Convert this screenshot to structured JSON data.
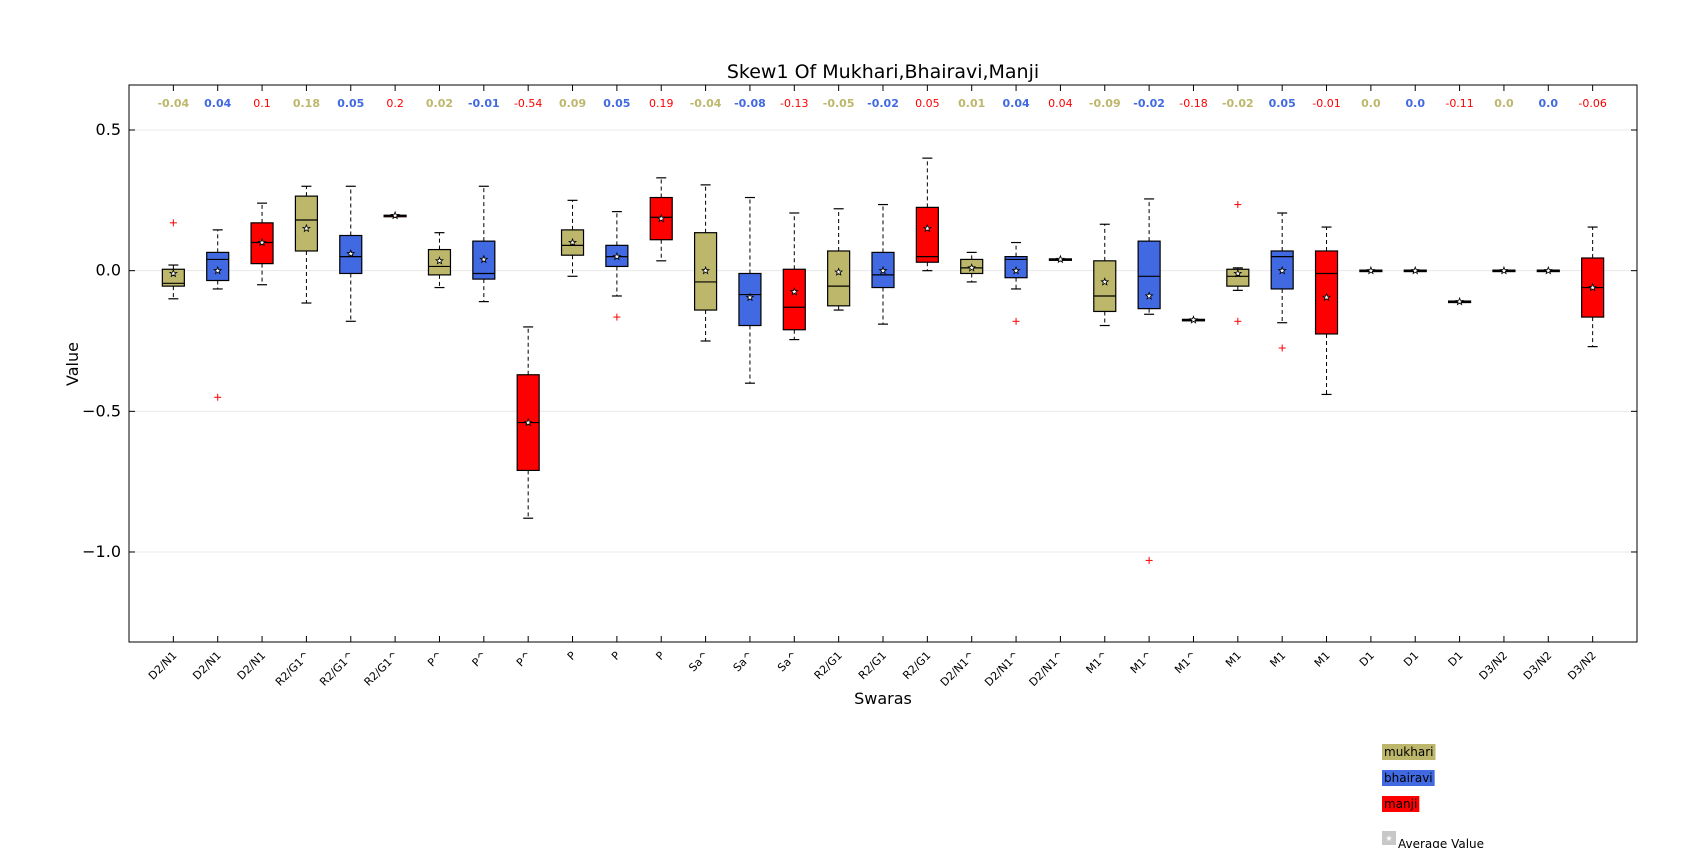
{
  "chart_data": {
    "type": "boxplot",
    "title": "Skew1 Of Mukhari,Bhairavi,Manji",
    "xlabel": "Swaras",
    "ylabel": "Value",
    "ylim": [
      -1.32,
      0.66
    ],
    "yticks": [
      0.5,
      0.0,
      -0.5,
      -1.0
    ],
    "ytick_labels": [
      "0.5",
      "0.0",
      "−0.5",
      "−1.0"
    ],
    "grid": "horizontal",
    "legend_position": "bottom-right",
    "average_value_label": "Average Value",
    "series_colors": {
      "mukhari": "#bdb76b",
      "bhairavi": "#4169e1",
      "manji": "#ff0000"
    },
    "avg_label_colors": {
      "mukhari": "#bdb76b",
      "bhairavi": "#4169e1",
      "manji": "#ff0000"
    },
    "legend": [
      {
        "name": "mukhari",
        "color": "#bdb76b"
      },
      {
        "name": "bhairavi",
        "color": "#4169e1"
      },
      {
        "name": "manji",
        "color": "#ff0000"
      }
    ],
    "boxes": [
      {
        "label": "D2/N1",
        "series": "mukhari",
        "avg_label": "-0.04",
        "whislo": -0.1,
        "q1": -0.055,
        "med": -0.045,
        "q3": 0.005,
        "whishi": 0.02,
        "mean": -0.01,
        "fliers": [
          0.17
        ]
      },
      {
        "label": "D2/N1",
        "series": "bhairavi",
        "avg_label": "0.04",
        "whislo": -0.065,
        "q1": -0.035,
        "med": 0.04,
        "q3": 0.065,
        "whishi": 0.145,
        "mean": 0.0,
        "fliers": [
          -0.45
        ]
      },
      {
        "label": "D2/N1",
        "series": "manji",
        "avg_label": "0.1",
        "whislo": -0.05,
        "q1": 0.025,
        "med": 0.1,
        "q3": 0.17,
        "whishi": 0.24,
        "mean": 0.1,
        "fliers": []
      },
      {
        "label": "R2/G1^",
        "series": "mukhari",
        "avg_label": "0.18",
        "whislo": -0.115,
        "q1": 0.07,
        "med": 0.18,
        "q3": 0.265,
        "whishi": 0.3,
        "mean": 0.15,
        "fliers": []
      },
      {
        "label": "R2/G1^",
        "series": "bhairavi",
        "avg_label": "0.05",
        "whislo": -0.18,
        "q1": -0.01,
        "med": 0.05,
        "q3": 0.125,
        "whishi": 0.3,
        "mean": 0.06,
        "fliers": []
      },
      {
        "label": "R2/G1^",
        "series": "manji",
        "avg_label": "0.2",
        "whislo": 0.195,
        "q1": 0.195,
        "med": 0.196,
        "q3": 0.197,
        "whishi": 0.198,
        "mean": 0.196,
        "fliers": []
      },
      {
        "label": "P^",
        "series": "mukhari",
        "avg_label": "0.02",
        "whislo": -0.06,
        "q1": -0.015,
        "med": 0.015,
        "q3": 0.075,
        "whishi": 0.135,
        "mean": 0.035,
        "fliers": []
      },
      {
        "label": "P^",
        "series": "bhairavi",
        "avg_label": "-0.01",
        "whislo": -0.11,
        "q1": -0.03,
        "med": -0.01,
        "q3": 0.105,
        "whishi": 0.3,
        "mean": 0.04,
        "fliers": []
      },
      {
        "label": "P^",
        "series": "manji",
        "avg_label": "-0.54",
        "whislo": -0.88,
        "q1": -0.71,
        "med": -0.54,
        "q3": -0.37,
        "whishi": -0.2,
        "mean": -0.54,
        "fliers": []
      },
      {
        "label": "P",
        "series": "mukhari",
        "avg_label": "0.09",
        "whislo": -0.02,
        "q1": 0.055,
        "med": 0.09,
        "q3": 0.145,
        "whishi": 0.25,
        "mean": 0.1,
        "fliers": []
      },
      {
        "label": "P",
        "series": "bhairavi",
        "avg_label": "0.05",
        "whislo": -0.09,
        "q1": 0.015,
        "med": 0.05,
        "q3": 0.09,
        "whishi": 0.21,
        "mean": 0.05,
        "fliers": [
          -0.165
        ]
      },
      {
        "label": "P",
        "series": "manji",
        "avg_label": "0.19",
        "whislo": 0.035,
        "q1": 0.11,
        "med": 0.19,
        "q3": 0.26,
        "whishi": 0.33,
        "mean": 0.185,
        "fliers": []
      },
      {
        "label": "Sa^",
        "series": "mukhari",
        "avg_label": "-0.04",
        "whislo": -0.25,
        "q1": -0.14,
        "med": -0.04,
        "q3": 0.135,
        "whishi": 0.305,
        "mean": 0.0,
        "fliers": []
      },
      {
        "label": "Sa^",
        "series": "bhairavi",
        "avg_label": "-0.08",
        "whislo": -0.4,
        "q1": -0.195,
        "med": -0.085,
        "q3": -0.01,
        "whishi": 0.26,
        "mean": -0.095,
        "fliers": []
      },
      {
        "label": "Sa^",
        "series": "manji",
        "avg_label": "-0.13",
        "whislo": -0.245,
        "q1": -0.21,
        "med": -0.13,
        "q3": 0.005,
        "whishi": 0.205,
        "mean": -0.075,
        "fliers": []
      },
      {
        "label": "R2/G1",
        "series": "mukhari",
        "avg_label": "-0.05",
        "whislo": -0.14,
        "q1": -0.125,
        "med": -0.055,
        "q3": 0.07,
        "whishi": 0.22,
        "mean": -0.005,
        "fliers": []
      },
      {
        "label": "R2/G1",
        "series": "bhairavi",
        "avg_label": "-0.02",
        "whislo": -0.19,
        "q1": -0.06,
        "med": -0.015,
        "q3": 0.065,
        "whishi": 0.235,
        "mean": 0.0,
        "fliers": []
      },
      {
        "label": "R2/G1",
        "series": "manji",
        "avg_label": "0.05",
        "whislo": 0.0,
        "q1": 0.03,
        "med": 0.05,
        "q3": 0.225,
        "whishi": 0.4,
        "mean": 0.15,
        "fliers": []
      },
      {
        "label": "D2/N1^",
        "series": "mukhari",
        "avg_label": "0.01",
        "whislo": -0.04,
        "q1": -0.01,
        "med": 0.01,
        "q3": 0.04,
        "whishi": 0.065,
        "mean": 0.01,
        "fliers": []
      },
      {
        "label": "D2/N1^",
        "series": "bhairavi",
        "avg_label": "0.04",
        "whislo": -0.065,
        "q1": -0.025,
        "med": 0.04,
        "q3": 0.05,
        "whishi": 0.1,
        "mean": 0.0,
        "fliers": [
          -0.18
        ]
      },
      {
        "label": "D2/N1^",
        "series": "manji",
        "avg_label": "0.04",
        "whislo": 0.038,
        "q1": 0.038,
        "med": 0.04,
        "q3": 0.042,
        "whishi": 0.042,
        "mean": 0.04,
        "fliers": []
      },
      {
        "label": "M1^",
        "series": "mukhari",
        "avg_label": "-0.09",
        "whislo": -0.195,
        "q1": -0.145,
        "med": -0.09,
        "q3": 0.035,
        "whishi": 0.165,
        "mean": -0.04,
        "fliers": []
      },
      {
        "label": "M1^",
        "series": "bhairavi",
        "avg_label": "-0.02",
        "whislo": -0.155,
        "q1": -0.135,
        "med": -0.02,
        "q3": 0.105,
        "whishi": 0.255,
        "mean": -0.09,
        "fliers": [
          -1.03
        ]
      },
      {
        "label": "M1^",
        "series": "manji",
        "avg_label": "-0.18",
        "whislo": -0.177,
        "q1": -0.177,
        "med": -0.175,
        "q3": -0.173,
        "whishi": -0.173,
        "mean": -0.175,
        "fliers": []
      },
      {
        "label": "M1",
        "series": "mukhari",
        "avg_label": "-0.02",
        "whislo": -0.07,
        "q1": -0.055,
        "med": -0.02,
        "q3": 0.005,
        "whishi": 0.01,
        "mean": -0.01,
        "fliers": [
          0.235,
          -0.18
        ]
      },
      {
        "label": "M1",
        "series": "bhairavi",
        "avg_label": "0.05",
        "whislo": -0.185,
        "q1": -0.065,
        "med": 0.05,
        "q3": 0.07,
        "whishi": 0.205,
        "mean": 0.0,
        "fliers": [
          -0.275
        ]
      },
      {
        "label": "M1",
        "series": "manji",
        "avg_label": "-0.01",
        "whislo": -0.44,
        "q1": -0.225,
        "med": -0.01,
        "q3": 0.07,
        "whishi": 0.155,
        "mean": -0.095,
        "fliers": []
      },
      {
        "label": "D1",
        "series": "mukhari",
        "avg_label": "0.0",
        "whislo": -0.002,
        "q1": -0.002,
        "med": 0.0,
        "q3": 0.002,
        "whishi": 0.002,
        "mean": 0.0,
        "fliers": []
      },
      {
        "label": "D1",
        "series": "bhairavi",
        "avg_label": "0.0",
        "whislo": -0.002,
        "q1": -0.002,
        "med": 0.0,
        "q3": 0.002,
        "whishi": 0.002,
        "mean": 0.0,
        "fliers": []
      },
      {
        "label": "D1",
        "series": "manji",
        "avg_label": "-0.11",
        "whislo": -0.112,
        "q1": -0.112,
        "med": -0.11,
        "q3": -0.108,
        "whishi": -0.108,
        "mean": -0.11,
        "fliers": []
      },
      {
        "label": "D3/N2",
        "series": "mukhari",
        "avg_label": "0.0",
        "whislo": -0.002,
        "q1": -0.002,
        "med": 0.0,
        "q3": 0.002,
        "whishi": 0.002,
        "mean": 0.0,
        "fliers": []
      },
      {
        "label": "D3/N2",
        "series": "bhairavi",
        "avg_label": "0.0",
        "whislo": -0.002,
        "q1": -0.002,
        "med": 0.0,
        "q3": 0.002,
        "whishi": 0.002,
        "mean": 0.0,
        "fliers": []
      },
      {
        "label": "D3/N2",
        "series": "manji",
        "avg_label": "-0.06",
        "whislo": -0.27,
        "q1": -0.165,
        "med": -0.06,
        "q3": 0.045,
        "whishi": 0.155,
        "mean": -0.06,
        "fliers": []
      }
    ]
  }
}
